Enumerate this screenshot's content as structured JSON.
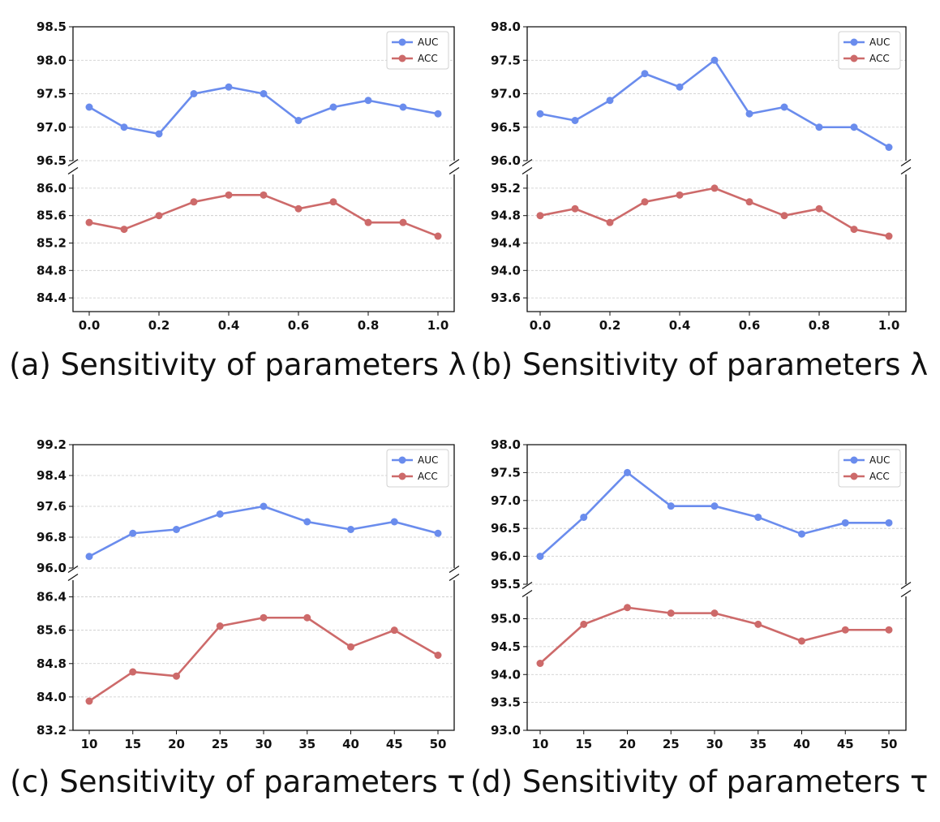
{
  "colors": {
    "auc": "#6a8ced",
    "acc": "#cd6a6a",
    "grid": "#c8c8c8"
  },
  "chart_data": [
    {
      "type": "line",
      "caption": "(a) Sensitivity of parameters λ",
      "x": [
        0.0,
        0.1,
        0.2,
        0.3,
        0.4,
        0.5,
        0.6,
        0.7,
        0.8,
        0.9,
        1.0
      ],
      "xticks": [
        0.0,
        0.2,
        0.4,
        0.6,
        0.8,
        1.0
      ],
      "xtick_labels": [
        "0.0",
        "0.2",
        "0.4",
        "0.6",
        "0.8",
        "1.0"
      ],
      "broken_y_axis": true,
      "grid": "horizontal-dashed",
      "legend": {
        "position": "top-right",
        "entries": [
          "AUC",
          "ACC"
        ]
      },
      "top": {
        "ylim": [
          96.5,
          98.5
        ],
        "yticks": [
          96.5,
          97.0,
          97.5,
          98.0,
          98.5
        ],
        "ytick_labels": [
          "96.5",
          "97.0",
          "97.5",
          "98.0",
          "98.5"
        ]
      },
      "bottom": {
        "ylim": [
          84.2,
          86.2
        ],
        "yticks": [
          84.4,
          84.8,
          85.2,
          85.6,
          86.0
        ],
        "ytick_labels": [
          "84.4",
          "84.8",
          "85.2",
          "85.6",
          "86.0"
        ]
      },
      "series": [
        {
          "name": "AUC",
          "axis": "top",
          "values": [
            97.3,
            97.0,
            96.9,
            97.5,
            97.6,
            97.5,
            97.1,
            97.3,
            97.4,
            97.3,
            97.2
          ]
        },
        {
          "name": "ACC",
          "axis": "bottom",
          "values": [
            85.5,
            85.4,
            85.6,
            85.8,
            85.9,
            85.9,
            85.7,
            85.8,
            85.5,
            85.5,
            85.3
          ]
        }
      ]
    },
    {
      "type": "line",
      "caption": "(b) Sensitivity of parameters λ",
      "x": [
        0.0,
        0.1,
        0.2,
        0.3,
        0.4,
        0.5,
        0.6,
        0.7,
        0.8,
        0.9,
        1.0
      ],
      "xticks": [
        0.0,
        0.2,
        0.4,
        0.6,
        0.8,
        1.0
      ],
      "xtick_labels": [
        "0.0",
        "0.2",
        "0.4",
        "0.6",
        "0.8",
        "1.0"
      ],
      "broken_y_axis": true,
      "grid": "horizontal-dashed",
      "legend": {
        "position": "top-right",
        "entries": [
          "AUC",
          "ACC"
        ]
      },
      "top": {
        "ylim": [
          96.0,
          98.0
        ],
        "yticks": [
          96.0,
          96.5,
          97.0,
          97.5,
          98.0
        ],
        "ytick_labels": [
          "96.0",
          "96.5",
          "97.0",
          "97.5",
          "98.0"
        ]
      },
      "bottom": {
        "ylim": [
          93.4,
          95.4
        ],
        "yticks": [
          93.6,
          94.0,
          94.4,
          94.8,
          95.2
        ],
        "ytick_labels": [
          "93.6",
          "94.0",
          "94.4",
          "94.8",
          "95.2"
        ]
      },
      "series": [
        {
          "name": "AUC",
          "axis": "top",
          "values": [
            96.7,
            96.6,
            96.9,
            97.3,
            97.1,
            97.5,
            96.7,
            96.8,
            96.5,
            96.5,
            96.2
          ]
        },
        {
          "name": "ACC",
          "axis": "bottom",
          "values": [
            94.8,
            94.9,
            94.7,
            95.0,
            95.1,
            95.2,
            95.0,
            94.8,
            94.9,
            94.6,
            94.5
          ]
        }
      ]
    },
    {
      "type": "line",
      "caption": "(c) Sensitivity of parameters τ",
      "x": [
        10,
        15,
        20,
        25,
        30,
        35,
        40,
        45,
        50
      ],
      "xticks": [
        10,
        15,
        20,
        25,
        30,
        35,
        40,
        45,
        50
      ],
      "xtick_labels": [
        "10",
        "15",
        "20",
        "25",
        "30",
        "35",
        "40",
        "45",
        "50"
      ],
      "broken_y_axis": true,
      "grid": "horizontal-dashed",
      "legend": {
        "position": "top-right",
        "entries": [
          "AUC",
          "ACC"
        ]
      },
      "top": {
        "ylim": [
          96.0,
          99.2
        ],
        "yticks": [
          96.0,
          96.8,
          97.6,
          98.4,
          99.2
        ],
        "ytick_labels": [
          "96.0",
          "96.8",
          "97.6",
          "98.4",
          "99.2"
        ]
      },
      "bottom": {
        "ylim": [
          83.2,
          86.8
        ],
        "yticks": [
          83.2,
          84.0,
          84.8,
          85.6,
          86.4
        ],
        "ytick_labels": [
          "83.2",
          "84.0",
          "84.8",
          "85.6",
          "86.4"
        ]
      },
      "series": [
        {
          "name": "AUC",
          "axis": "top",
          "values": [
            96.3,
            96.9,
            97.0,
            97.4,
            97.6,
            97.2,
            97.0,
            97.2,
            96.9
          ]
        },
        {
          "name": "ACC",
          "axis": "bottom",
          "values": [
            83.9,
            84.6,
            84.5,
            85.7,
            85.9,
            85.9,
            85.2,
            85.6,
            85.0
          ]
        }
      ]
    },
    {
      "type": "line",
      "caption": "(d) Sensitivity of parameters τ",
      "x": [
        10,
        15,
        20,
        25,
        30,
        35,
        40,
        45,
        50
      ],
      "xticks": [
        10,
        15,
        20,
        25,
        30,
        35,
        40,
        45,
        50
      ],
      "xtick_labels": [
        "10",
        "15",
        "20",
        "25",
        "30",
        "35",
        "40",
        "45",
        "50"
      ],
      "broken_y_axis": true,
      "grid": "horizontal-dashed",
      "legend": {
        "position": "top-right",
        "entries": [
          "AUC",
          "ACC"
        ]
      },
      "top": {
        "ylim": [
          95.5,
          98.0
        ],
        "yticks": [
          95.5,
          96.0,
          96.5,
          97.0,
          97.5,
          98.0
        ],
        "ytick_labels": [
          "95.5",
          "96.0",
          "96.5",
          "97.0",
          "97.5",
          "98.0"
        ]
      },
      "bottom": {
        "ylim": [
          93.0,
          95.4
        ],
        "yticks": [
          93.0,
          93.5,
          94.0,
          94.5,
          95.0
        ],
        "ytick_labels": [
          "93.0",
          "93.5",
          "94.0",
          "94.5",
          "95.0"
        ]
      },
      "series": [
        {
          "name": "AUC",
          "axis": "top",
          "values": [
            96.0,
            96.7,
            97.5,
            96.9,
            96.9,
            96.7,
            96.4,
            96.6,
            96.6
          ]
        },
        {
          "name": "ACC",
          "axis": "bottom",
          "values": [
            94.2,
            94.9,
            95.2,
            95.1,
            95.1,
            94.9,
            94.6,
            94.8,
            94.8
          ]
        }
      ]
    }
  ]
}
